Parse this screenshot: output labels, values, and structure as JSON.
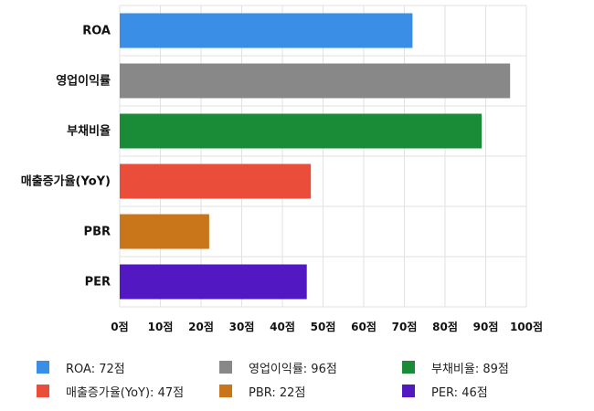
{
  "chart_data": {
    "type": "bar",
    "orientation": "horizontal",
    "categories": [
      "ROA",
      "영업이익률",
      "부채비율",
      "매출증가율(YoY)",
      "PBR",
      "PER"
    ],
    "values": [
      72,
      96,
      89,
      47,
      22,
      46
    ],
    "colors": [
      "#3a8ee6",
      "#888888",
      "#1a8c38",
      "#ea4e3a",
      "#c97519",
      "#5218c2"
    ],
    "xlim": [
      0,
      100
    ],
    "ticks": [
      0,
      10,
      20,
      30,
      40,
      50,
      60,
      70,
      80,
      90,
      100
    ],
    "tick_labels": [
      "0점",
      "10점",
      "20점",
      "30점",
      "40점",
      "50점",
      "60점",
      "70점",
      "80점",
      "90점",
      "100점"
    ],
    "grid": true,
    "legend_position": "bottom",
    "legend": [
      {
        "label": "ROA: 72점",
        "color": "#3a8ee6"
      },
      {
        "label": "영업이익률: 96점",
        "color": "#888888"
      },
      {
        "label": "부채비율: 89점",
        "color": "#1a8c38"
      },
      {
        "label": "매출증가율(YoY): 47점",
        "color": "#ea4e3a"
      },
      {
        "label": "PBR: 22점",
        "color": "#c97519"
      },
      {
        "label": "PER: 46점",
        "color": "#5218c2"
      }
    ]
  }
}
